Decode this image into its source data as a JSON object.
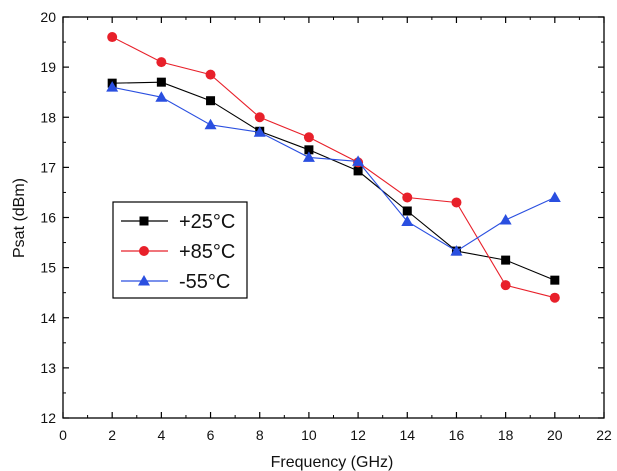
{
  "chart_data": {
    "type": "line",
    "title": "",
    "xlabel": "Frequency (GHz)",
    "ylabel": "Psat (dBm)",
    "xlim": [
      0,
      22
    ],
    "ylim": [
      12,
      20
    ],
    "xticks": [
      0,
      2,
      4,
      6,
      8,
      10,
      12,
      14,
      16,
      18,
      20,
      22
    ],
    "yticks": [
      12,
      13,
      14,
      15,
      16,
      17,
      18,
      19,
      20
    ],
    "grid": false,
    "legend_position": "left",
    "series": [
      {
        "name": "+25°C",
        "marker": "square",
        "color": "#000000",
        "x": [
          2,
          4,
          6,
          8,
          10,
          12,
          14,
          16,
          18,
          20
        ],
        "y": [
          18.68,
          18.7,
          18.33,
          17.72,
          17.35,
          16.93,
          16.13,
          15.33,
          15.15,
          14.75
        ]
      },
      {
        "name": "+85°C",
        "marker": "circle",
        "color": "#e8202a",
        "x": [
          2,
          4,
          6,
          8,
          10,
          12,
          14,
          16,
          18,
          20
        ],
        "y": [
          19.6,
          19.1,
          18.85,
          18.0,
          17.6,
          17.1,
          16.4,
          16.3,
          14.65,
          14.4
        ]
      },
      {
        "name": "-55°C",
        "marker": "triangle",
        "color": "#2a4fe0",
        "x": [
          2,
          4,
          6,
          8,
          10,
          12,
          14,
          16,
          18,
          20
        ],
        "y": [
          18.6,
          18.4,
          17.85,
          17.7,
          17.2,
          17.12,
          15.92,
          15.33,
          15.95,
          16.4
        ]
      }
    ]
  }
}
